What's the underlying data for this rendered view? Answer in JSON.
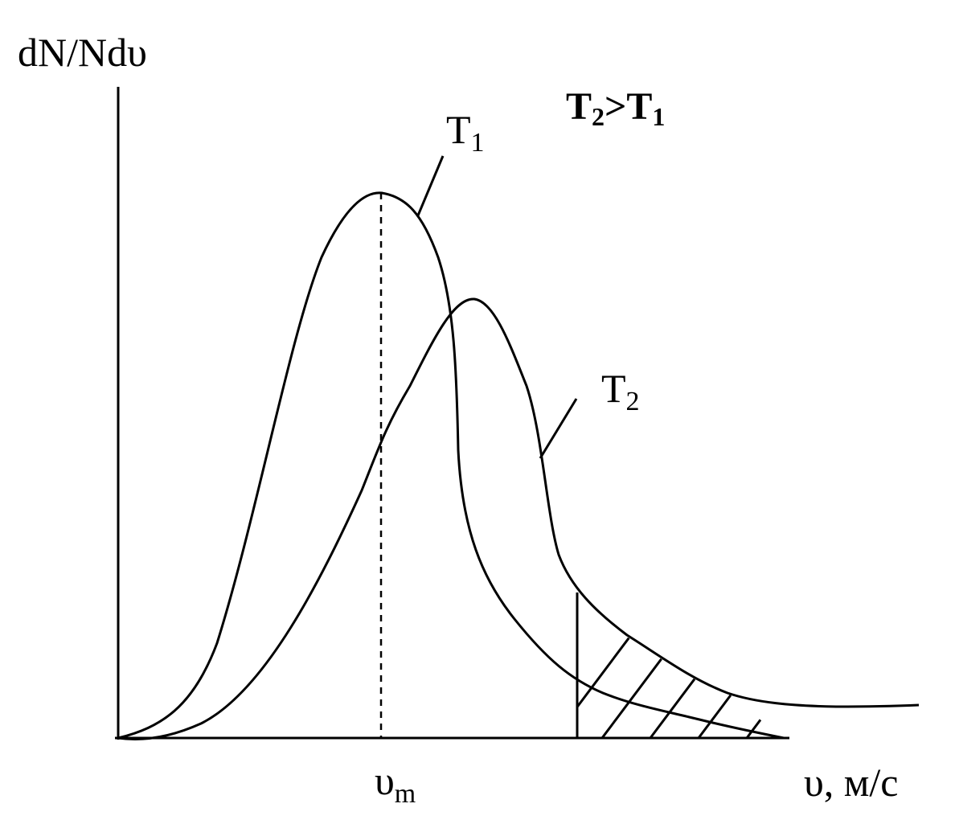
{
  "labels": {
    "y_axis": "dN/Ndυ",
    "x_axis": "υ, м/с",
    "vm_main": "υ",
    "vm_sub": "m",
    "t1_main": "T",
    "t1_sub": "1",
    "t2_main": "T",
    "t2_sub": "2",
    "cond_t2": "T",
    "cond_t2_sub": "2",
    "cond_gt": ">",
    "cond_t1": "T",
    "cond_t1_sub": "1"
  },
  "colors": {
    "ink": "#000000",
    "background": "#ffffff"
  }
}
